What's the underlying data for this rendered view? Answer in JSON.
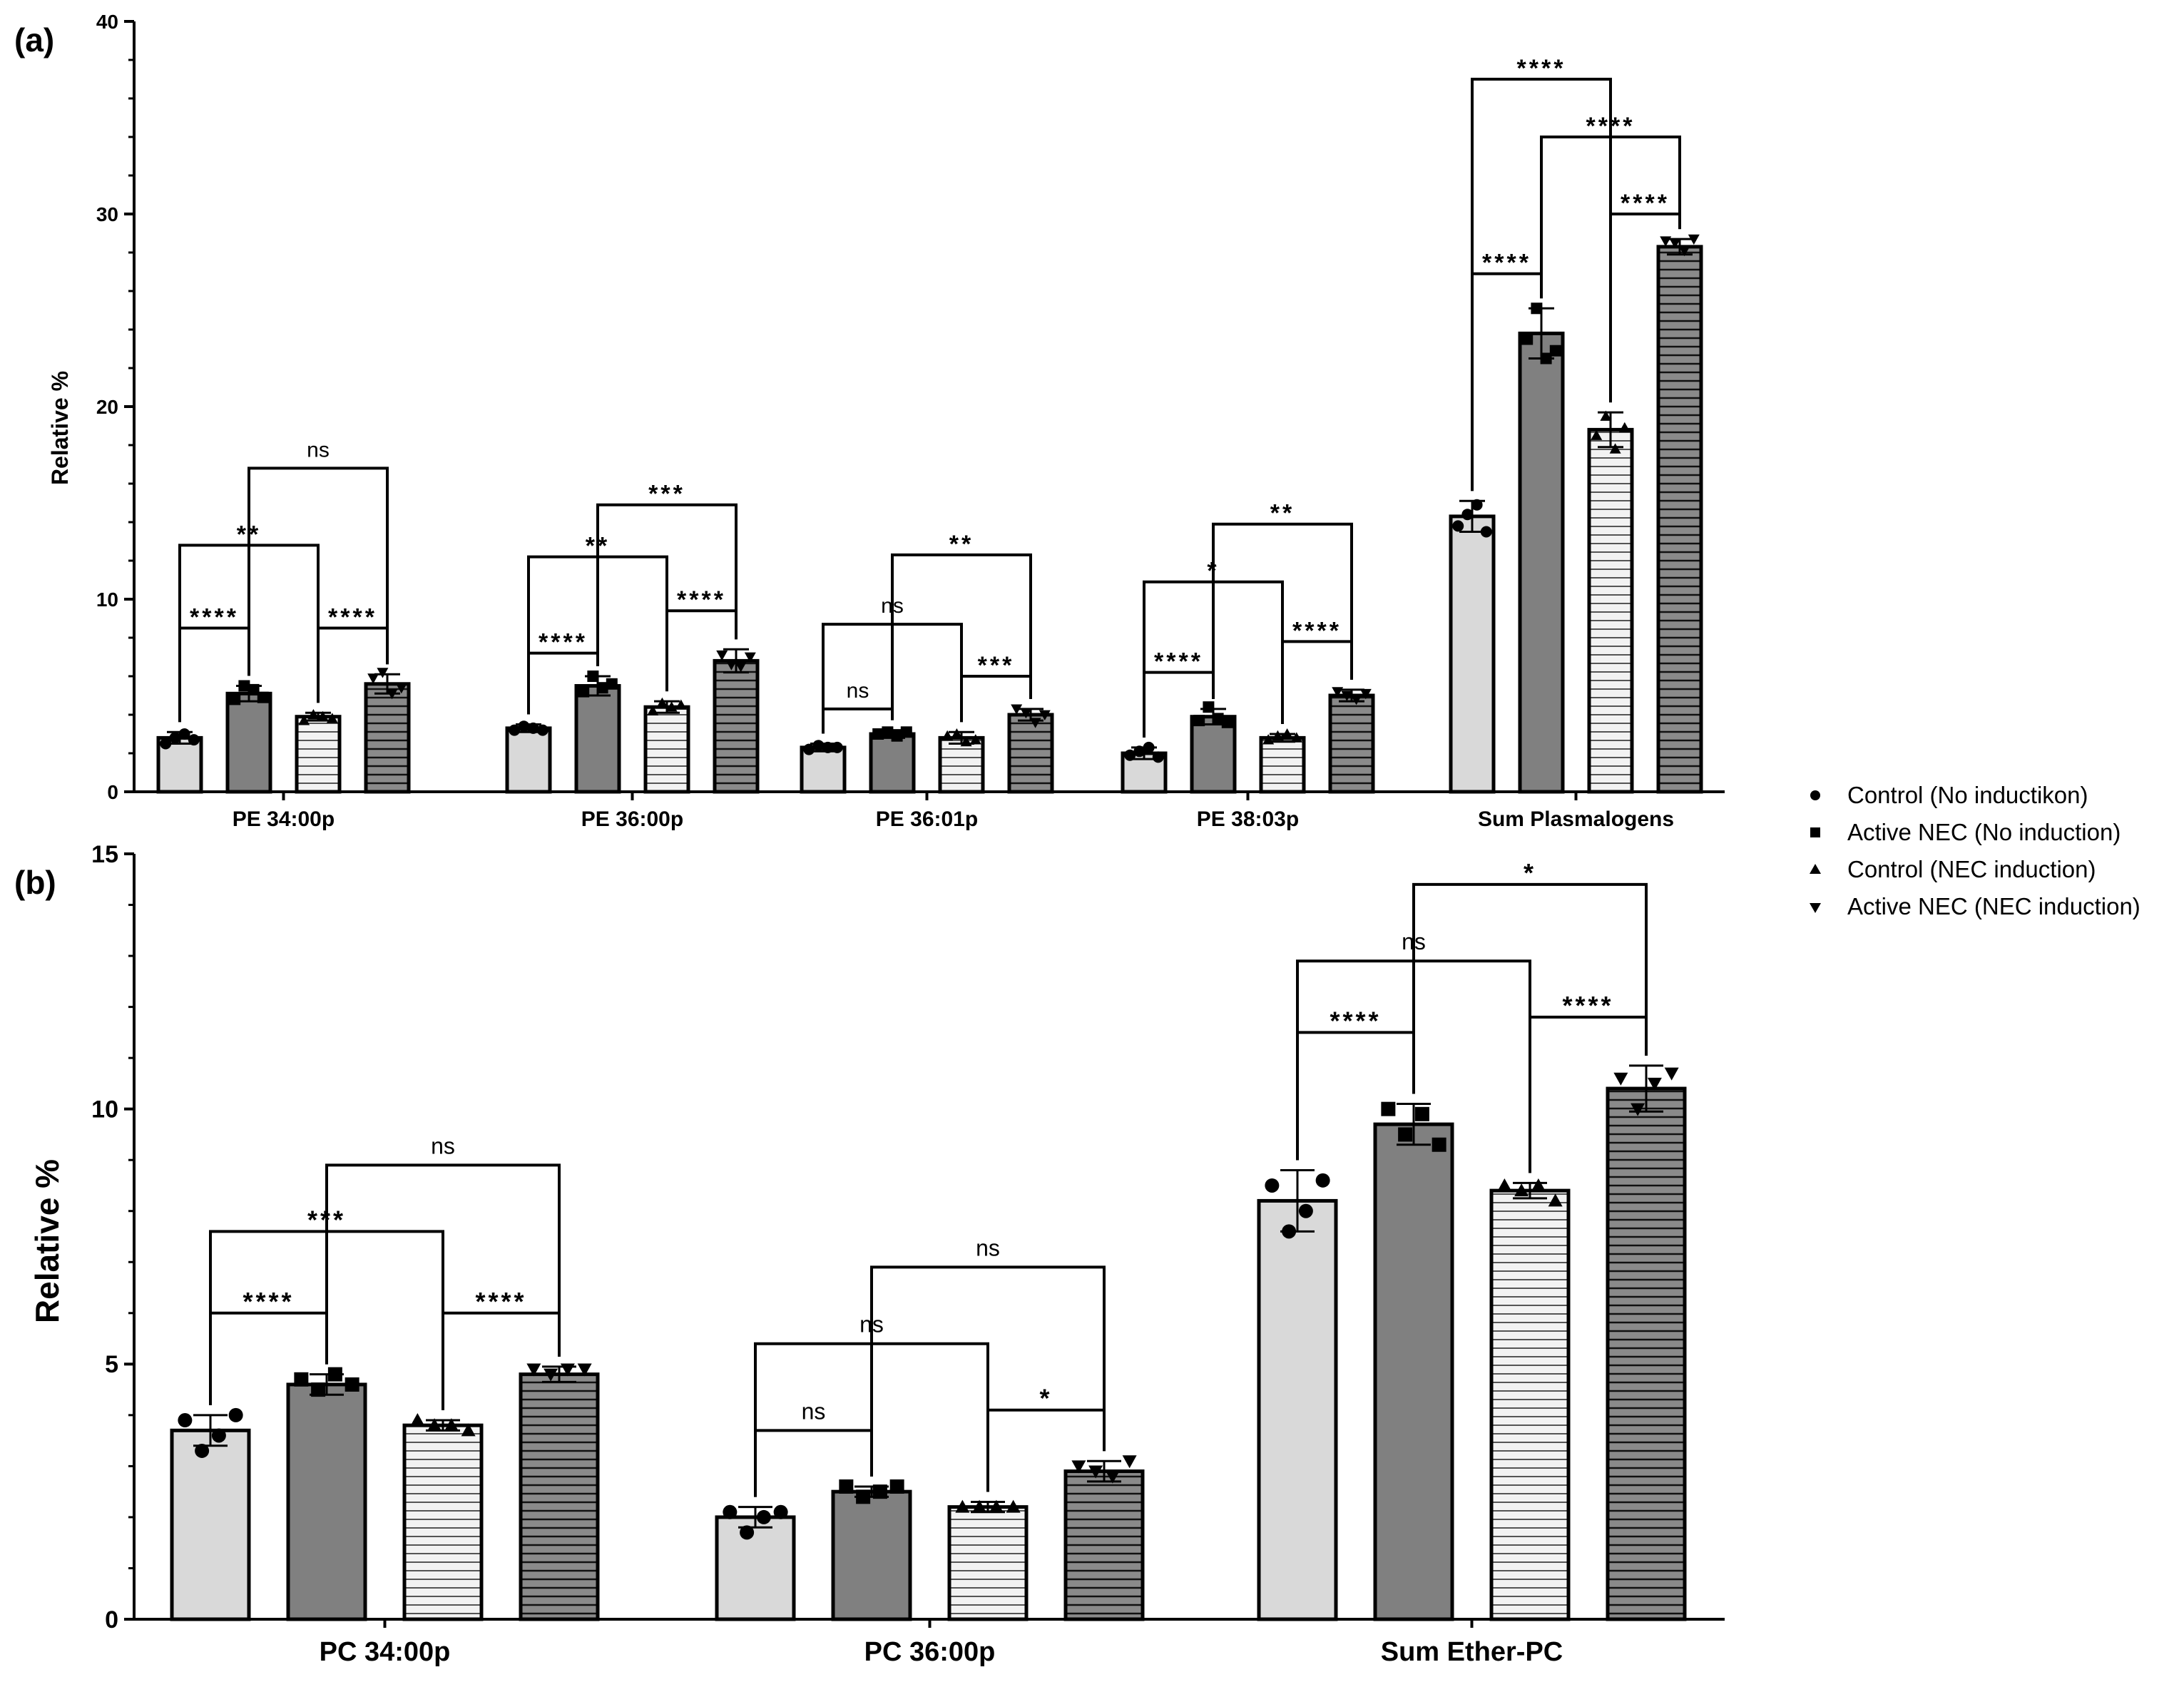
{
  "colors": {
    "control_fill": "#d9d9d9",
    "active_fill": "#808080",
    "ctrl_nec_fill": "#f2f2f2",
    "active_nec_fill": "#808080",
    "stroke": "#000000"
  },
  "legend": [
    {
      "label": "Control (No inductikon)",
      "marker": "circle"
    },
    {
      "label": "Active NEC (No induction)",
      "marker": "square"
    },
    {
      "label": "Control (NEC induction)",
      "marker": "triangle-up"
    },
    {
      "label": "Active NEC (NEC induction)",
      "marker": "triangle-down"
    }
  ],
  "chart_data": [
    {
      "type": "bar",
      "panel_label": "(a)",
      "ylabel": "Relative %",
      "ylim": [
        0,
        40
      ],
      "yticks": [
        0,
        10,
        20,
        30,
        40
      ],
      "categories": [
        "PE 34:00p",
        "PE 36:00p",
        "PE 36:01p",
        "PE 38:03p",
        "Sum Plasmalogens"
      ],
      "series": [
        {
          "name": "Control (No inductikon)",
          "values": [
            2.8,
            3.3,
            2.3,
            2.0,
            14.3
          ],
          "err": [
            0.3,
            0.2,
            0.2,
            0.3,
            0.8
          ],
          "points": [
            [
              2.5,
              2.8,
              3.0,
              2.7
            ],
            [
              3.2,
              3.4,
              3.3,
              3.2
            ],
            [
              2.2,
              2.4,
              2.3,
              2.3
            ],
            [
              1.9,
              2.1,
              2.3,
              1.8
            ],
            [
              13.8,
              14.4,
              14.9,
              13.5
            ]
          ]
        },
        {
          "name": "Active NEC (No induction)",
          "values": [
            5.1,
            5.5,
            3.0,
            3.9,
            23.8
          ],
          "err": [
            0.4,
            0.5,
            0.2,
            0.4,
            1.3
          ],
          "points": [
            [
              4.8,
              5.5,
              5.3,
              4.9
            ],
            [
              5.2,
              6.0,
              5.4,
              5.6
            ],
            [
              3.0,
              3.1,
              2.9,
              3.1
            ],
            [
              3.7,
              4.4,
              3.8,
              3.6
            ],
            [
              23.5,
              25.1,
              22.5,
              22.9
            ]
          ]
        },
        {
          "name": "Control (NEC induction)",
          "values": [
            3.9,
            4.4,
            2.8,
            2.8,
            18.8
          ],
          "err": [
            0.2,
            0.3,
            0.3,
            0.2,
            0.9
          ],
          "points": [
            [
              3.7,
              4.0,
              3.9,
              3.8
            ],
            [
              4.2,
              4.6,
              4.4,
              4.5
            ],
            [
              2.9,
              3.0,
              2.6,
              2.7
            ],
            [
              2.7,
              2.9,
              3.0,
              2.8
            ],
            [
              18.5,
              19.5,
              17.8,
              18.9
            ]
          ]
        },
        {
          "name": "Active NEC (NEC induction)",
          "values": [
            5.6,
            6.8,
            4.0,
            5.0,
            28.3
          ],
          "err": [
            0.5,
            0.6,
            0.3,
            0.3,
            0.4
          ],
          "points": [
            [
              5.9,
              6.2,
              5.1,
              5.4
            ],
            [
              7.1,
              6.6,
              6.5,
              7.0
            ],
            [
              4.3,
              4.1,
              3.6,
              4.0
            ],
            [
              5.2,
              5.0,
              4.8,
              5.1
            ],
            [
              28.6,
              28.5,
              28.1,
              28.7
            ]
          ]
        }
      ],
      "comparisons": [
        {
          "cat": 0,
          "from": 0,
          "to": 1,
          "y": 8.5,
          "label": "****"
        },
        {
          "cat": 0,
          "from": 2,
          "to": 3,
          "y": 8.5,
          "label": "****"
        },
        {
          "cat": 0,
          "from": 0,
          "to": 2,
          "y": 12.8,
          "label": "**"
        },
        {
          "cat": 0,
          "from": 1,
          "to": 3,
          "y": 16.8,
          "label": "ns"
        },
        {
          "cat": 1,
          "from": 0,
          "to": 1,
          "y": 7.2,
          "label": "****"
        },
        {
          "cat": 1,
          "from": 2,
          "to": 3,
          "y": 9.4,
          "label": "****"
        },
        {
          "cat": 1,
          "from": 0,
          "to": 2,
          "y": 12.2,
          "label": "**"
        },
        {
          "cat": 1,
          "from": 1,
          "to": 3,
          "y": 14.9,
          "label": "***"
        },
        {
          "cat": 2,
          "from": 0,
          "to": 1,
          "y": 4.3,
          "label": "ns"
        },
        {
          "cat": 2,
          "from": 2,
          "to": 3,
          "y": 6.0,
          "label": "***"
        },
        {
          "cat": 2,
          "from": 0,
          "to": 2,
          "y": 8.7,
          "label": "ns"
        },
        {
          "cat": 2,
          "from": 1,
          "to": 3,
          "y": 12.3,
          "label": "**"
        },
        {
          "cat": 3,
          "from": 0,
          "to": 1,
          "y": 6.2,
          "label": "****"
        },
        {
          "cat": 3,
          "from": 2,
          "to": 3,
          "y": 7.8,
          "label": "****"
        },
        {
          "cat": 3,
          "from": 0,
          "to": 2,
          "y": 10.9,
          "label": "*"
        },
        {
          "cat": 3,
          "from": 1,
          "to": 3,
          "y": 13.9,
          "label": "**"
        },
        {
          "cat": 4,
          "from": 0,
          "to": 1,
          "y": 26.9,
          "label": "****"
        },
        {
          "cat": 4,
          "from": 2,
          "to": 3,
          "y": 30.0,
          "label": "****"
        },
        {
          "cat": 4,
          "from": 1,
          "to": 3,
          "y": 34.0,
          "label": "****"
        },
        {
          "cat": 4,
          "from": 0,
          "to": 2,
          "y": 37.0,
          "label": "****"
        }
      ]
    },
    {
      "type": "bar",
      "panel_label": "(b)",
      "ylabel": "Relative %",
      "ylim": [
        0,
        15
      ],
      "yticks": [
        0,
        5,
        10,
        15
      ],
      "categories": [
        "PC 34:00p",
        "PC 36:00p",
        "Sum Ether-PC"
      ],
      "series": [
        {
          "name": "Control (No inductikon)",
          "values": [
            3.7,
            2.0,
            8.2
          ],
          "err": [
            0.3,
            0.2,
            0.6
          ],
          "points": [
            [
              3.9,
              3.3,
              3.6,
              4.0
            ],
            [
              2.1,
              1.7,
              2.0,
              2.1
            ],
            [
              8.5,
              7.6,
              8.0,
              8.6
            ]
          ]
        },
        {
          "name": "Active NEC (No induction)",
          "values": [
            4.6,
            2.5,
            9.7
          ],
          "err": [
            0.2,
            0.1,
            0.4
          ],
          "points": [
            [
              4.7,
              4.5,
              4.8,
              4.6
            ],
            [
              2.6,
              2.4,
              2.5,
              2.6
            ],
            [
              10.0,
              9.5,
              9.9,
              9.3
            ]
          ]
        },
        {
          "name": "Control (NEC induction)",
          "values": [
            3.8,
            2.2,
            8.4
          ],
          "err": [
            0.1,
            0.1,
            0.15
          ],
          "points": [
            [
              3.9,
              3.8,
              3.8,
              3.7
            ],
            [
              2.2,
              2.2,
              2.2,
              2.2
            ],
            [
              8.5,
              8.4,
              8.5,
              8.2
            ]
          ]
        },
        {
          "name": "Active NEC (NEC induction)",
          "values": [
            4.8,
            2.9,
            10.4
          ],
          "err": [
            0.15,
            0.2,
            0.45
          ],
          "points": [
            [
              4.9,
              4.8,
              4.9,
              4.9
            ],
            [
              3.0,
              2.9,
              2.8,
              3.1
            ],
            [
              10.6,
              10.0,
              10.5,
              10.7
            ]
          ]
        }
      ],
      "comparisons": [
        {
          "cat": 0,
          "from": 0,
          "to": 1,
          "y": 6.0,
          "label": "****"
        },
        {
          "cat": 0,
          "from": 2,
          "to": 3,
          "y": 6.0,
          "label": "****"
        },
        {
          "cat": 0,
          "from": 0,
          "to": 2,
          "y": 7.6,
          "label": "***"
        },
        {
          "cat": 0,
          "from": 1,
          "to": 3,
          "y": 8.9,
          "label": "ns"
        },
        {
          "cat": 1,
          "from": 0,
          "to": 1,
          "y": 3.7,
          "label": "ns"
        },
        {
          "cat": 1,
          "from": 2,
          "to": 3,
          "y": 4.1,
          "label": "*"
        },
        {
          "cat": 1,
          "from": 0,
          "to": 2,
          "y": 5.4,
          "label": "ns"
        },
        {
          "cat": 1,
          "from": 1,
          "to": 3,
          "y": 6.9,
          "label": "ns"
        },
        {
          "cat": 2,
          "from": 0,
          "to": 1,
          "y": 11.5,
          "label": "****"
        },
        {
          "cat": 2,
          "from": 2,
          "to": 3,
          "y": 11.8,
          "label": "****"
        },
        {
          "cat": 2,
          "from": 0,
          "to": 2,
          "y": 12.9,
          "label": "ns"
        },
        {
          "cat": 2,
          "from": 1,
          "to": 3,
          "y": 14.4,
          "label": "*"
        }
      ]
    }
  ]
}
